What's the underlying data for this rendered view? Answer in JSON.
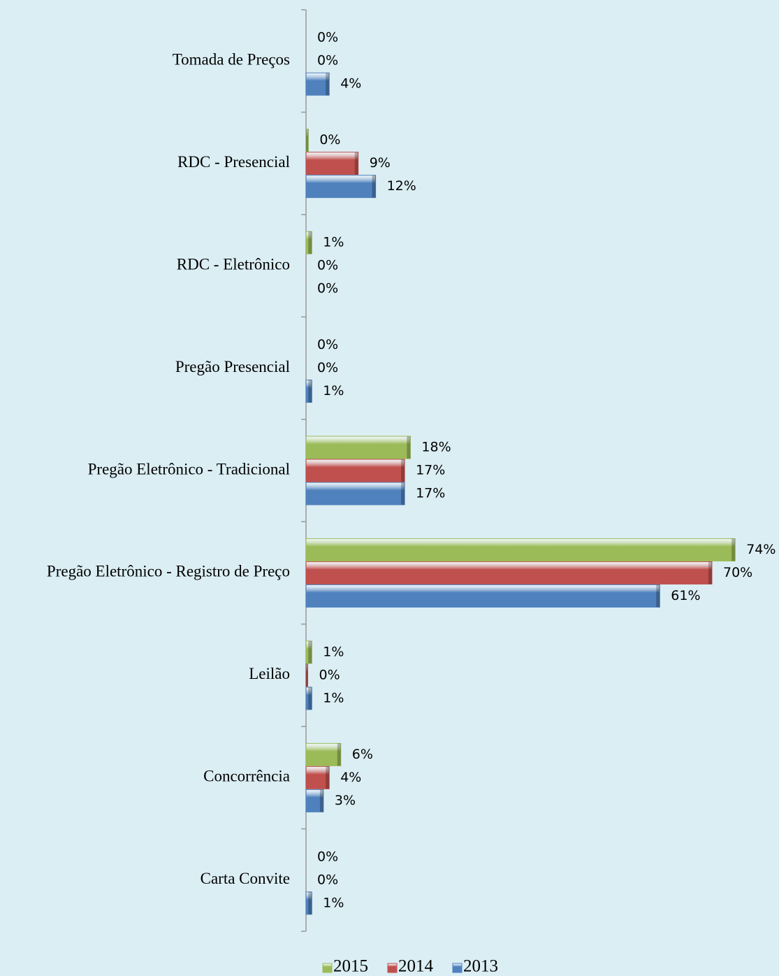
{
  "chart_data": {
    "type": "bar",
    "orientation": "horizontal",
    "categories": [
      "Tomada de Preços",
      "RDC - Presencial",
      "RDC - Eletrônico",
      "Pregão Presencial",
      "Pregão Eletrônico - Tradicional",
      "Pregão Eletrônico - Registro de Preço",
      "Leilão",
      "Concorrência",
      "Carta Convite"
    ],
    "series": [
      {
        "name": "2015",
        "color": "#9bbb59",
        "values": [
          0,
          0.4,
          1,
          0,
          18,
          74,
          1,
          6,
          0
        ],
        "value_labels": [
          "0%",
          "0%",
          "1%",
          "0%",
          "18%",
          "74%",
          "1%",
          "6%",
          "0%"
        ]
      },
      {
        "name": "2014",
        "color": "#c0504d",
        "values": [
          0,
          9,
          0,
          0,
          17,
          70,
          0.3,
          4,
          0
        ],
        "value_labels": [
          "0%",
          "9%",
          "0%",
          "0%",
          "17%",
          "70%",
          "0%",
          "4%",
          "0%"
        ]
      },
      {
        "name": "2013",
        "color": "#4f81bd",
        "values": [
          4,
          12,
          0,
          1,
          17,
          61,
          1,
          3,
          1
        ],
        "value_labels": [
          "4%",
          "12%",
          "0%",
          "1%",
          "17%",
          "61%",
          "1%",
          "3%",
          "1%"
        ]
      }
    ],
    "legend": "bottom"
  }
}
